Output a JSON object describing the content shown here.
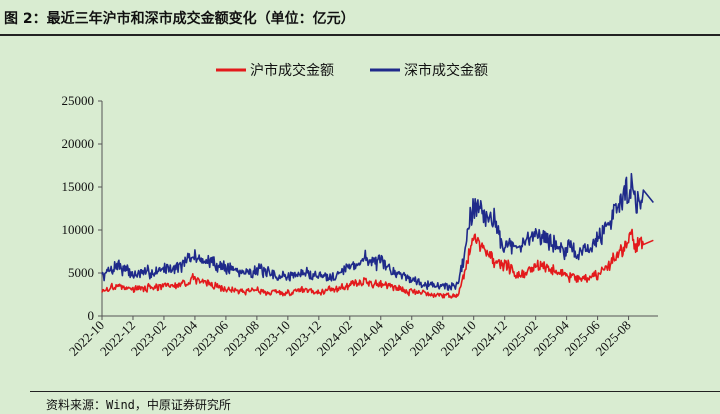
{
  "header": {
    "title": "图 2：最近三年沪市和深市成交金额变化（单位：亿元）"
  },
  "footer": {
    "source": "资料来源：Wind，中原证券研究所"
  },
  "colors": {
    "sh": "#e31a1c",
    "sz": "#1f2a8a",
    "axis": "#555555"
  },
  "chart_data": {
    "type": "line",
    "title": "最近三年沪市和深市成交金额变化",
    "unit": "亿元",
    "xlabel": "",
    "ylabel": "",
    "ylim": [
      0,
      25000
    ],
    "yticks": [
      0,
      5000,
      10000,
      15000,
      20000,
      25000
    ],
    "x_ticks": [
      "2022-10",
      "2022-12",
      "2023-02",
      "2023-04",
      "2023-06",
      "2023-08",
      "2023-10",
      "2023-12",
      "2024-02",
      "2024-04",
      "2024-06",
      "2024-08",
      "2024-10",
      "2024-12",
      "2025-02",
      "2025-04",
      "2025-06",
      "2025-08"
    ],
    "x_start": "2022-10",
    "x_end": "2025-09",
    "legend_position": "top-center",
    "series": [
      {
        "name": "沪市成交金额",
        "points": [
          [
            "2022-10",
            2800
          ],
          [
            "2022-11",
            3600
          ],
          [
            "2022-12",
            3100
          ],
          [
            "2023-01",
            3300
          ],
          [
            "2023-02",
            3400
          ],
          [
            "2023-03",
            3600
          ],
          [
            "2023-04",
            4300
          ],
          [
            "2023-05",
            3800
          ],
          [
            "2023-06",
            3100
          ],
          [
            "2023-07",
            2900
          ],
          [
            "2023-08",
            3000
          ],
          [
            "2023-09",
            2700
          ],
          [
            "2023-10",
            2700
          ],
          [
            "2023-11",
            3100
          ],
          [
            "2023-12",
            2900
          ],
          [
            "2024-01",
            3100
          ],
          [
            "2024-02",
            3600
          ],
          [
            "2024-03",
            4000
          ],
          [
            "2024-04",
            3700
          ],
          [
            "2024-05",
            3300
          ],
          [
            "2024-06",
            2800
          ],
          [
            "2024-07",
            2600
          ],
          [
            "2024-08",
            2400
          ],
          [
            "2024-09",
            2500
          ],
          [
            "2024-10",
            9000
          ],
          [
            "2024-11",
            7200
          ],
          [
            "2024-12",
            5800
          ],
          [
            "2025-01",
            4600
          ],
          [
            "2025-02",
            5900
          ],
          [
            "2025-03",
            5600
          ],
          [
            "2025-04",
            4600
          ],
          [
            "2025-05",
            4400
          ],
          [
            "2025-06",
            4900
          ],
          [
            "2025-07",
            6500
          ],
          [
            "2025-08",
            8600
          ],
          [
            "2025-09",
            8800
          ]
        ]
      },
      {
        "name": "深市成交金额",
        "points": [
          [
            "2022-10",
            4600
          ],
          [
            "2022-11",
            6000
          ],
          [
            "2022-12",
            4800
          ],
          [
            "2023-01",
            5000
          ],
          [
            "2023-02",
            5500
          ],
          [
            "2023-03",
            5800
          ],
          [
            "2023-04",
            6900
          ],
          [
            "2023-05",
            6200
          ],
          [
            "2023-06",
            5700
          ],
          [
            "2023-07",
            5100
          ],
          [
            "2023-08",
            5400
          ],
          [
            "2023-09",
            4700
          ],
          [
            "2023-10",
            4600
          ],
          [
            "2023-11",
            5000
          ],
          [
            "2023-12",
            4700
          ],
          [
            "2024-01",
            4800
          ],
          [
            "2024-02",
            5700
          ],
          [
            "2024-03",
            6700
          ],
          [
            "2024-04",
            6000
          ],
          [
            "2024-05",
            5100
          ],
          [
            "2024-06",
            4300
          ],
          [
            "2024-07",
            3800
          ],
          [
            "2024-08",
            3400
          ],
          [
            "2024-09",
            3600
          ],
          [
            "2024-10",
            13500
          ],
          [
            "2024-11",
            11800
          ],
          [
            "2024-12",
            8500
          ],
          [
            "2025-01",
            7600
          ],
          [
            "2025-02",
            10000
          ],
          [
            "2025-03",
            8600
          ],
          [
            "2025-04",
            7500
          ],
          [
            "2025-05",
            7400
          ],
          [
            "2025-06",
            8800
          ],
          [
            "2025-07",
            12000
          ],
          [
            "2025-08",
            15000
          ],
          [
            "2025-09",
            13200
          ]
        ]
      }
    ]
  }
}
